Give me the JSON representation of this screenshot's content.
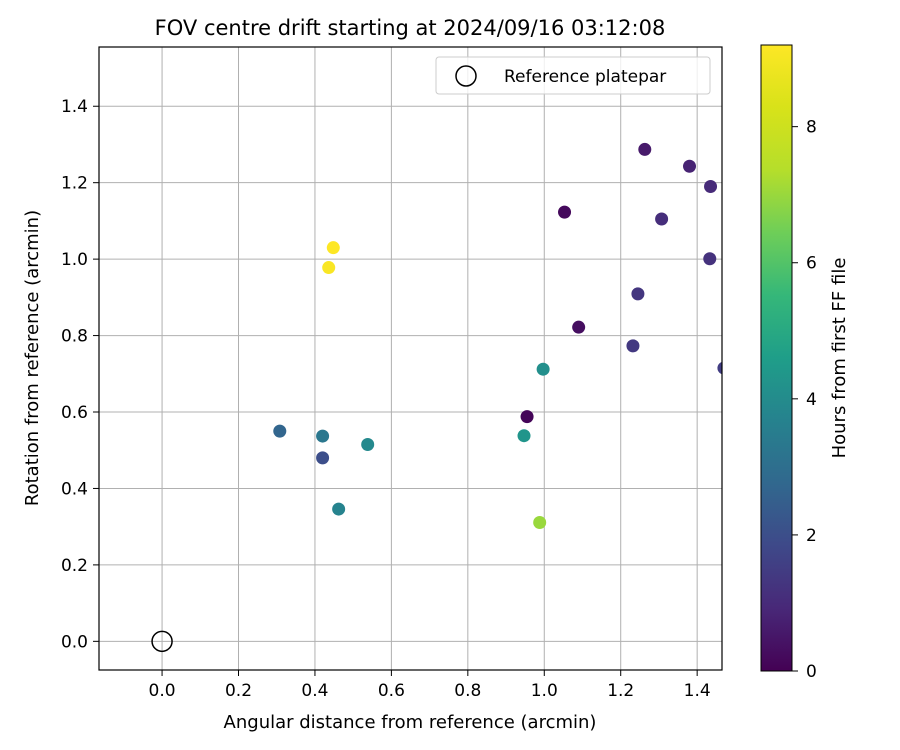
{
  "chart_data": {
    "type": "scatter",
    "title": "FOV centre drift starting at 2024/09/16 03:12:08",
    "xlabel": "Angular distance from reference (arcmin)",
    "ylabel": "Rotation from reference (arcmin)",
    "xlim": [
      -0.165,
      1.465
    ],
    "ylim": [
      -0.075,
      1.555
    ],
    "xticks": [
      0.0,
      0.2,
      0.4,
      0.6,
      0.8,
      1.0,
      1.2,
      1.4
    ],
    "yticks": [
      0.0,
      0.2,
      0.4,
      0.6,
      0.8,
      1.0,
      1.2,
      1.4
    ],
    "grid": true,
    "legend": {
      "position": "top-right",
      "entries": [
        "Reference platepar"
      ]
    },
    "reference": {
      "x": 0.0,
      "y": 0.0
    },
    "colorbar": {
      "label": "Hours from first FF file",
      "range": [
        0,
        9.2
      ],
      "ticks": [
        0,
        2,
        4,
        6,
        8
      ],
      "colormap": "viridis"
    },
    "points": [
      {
        "x": 0.955,
        "y": 0.588,
        "hours": 0.1
      },
      {
        "x": 1.053,
        "y": 1.123,
        "hours": 0.2
      },
      {
        "x": 1.09,
        "y": 0.822,
        "hours": 0.3
      },
      {
        "x": 1.263,
        "y": 1.287,
        "hours": 0.6
      },
      {
        "x": 1.38,
        "y": 1.243,
        "hours": 0.8
      },
      {
        "x": 1.435,
        "y": 1.19,
        "hours": 1.0
      },
      {
        "x": 1.307,
        "y": 1.105,
        "hours": 1.1
      },
      {
        "x": 1.433,
        "y": 1.001,
        "hours": 1.2
      },
      {
        "x": 1.245,
        "y": 0.909,
        "hours": 1.3
      },
      {
        "x": 1.232,
        "y": 0.773,
        "hours": 1.4
      },
      {
        "x": 1.47,
        "y": 0.715,
        "hours": 1.5
      },
      {
        "x": 0.42,
        "y": 0.48,
        "hours": 2.0
      },
      {
        "x": 0.308,
        "y": 0.55,
        "hours": 2.7
      },
      {
        "x": 0.42,
        "y": 0.537,
        "hours": 3.3
      },
      {
        "x": 0.462,
        "y": 0.346,
        "hours": 3.7
      },
      {
        "x": 0.538,
        "y": 0.515,
        "hours": 3.9
      },
      {
        "x": 0.997,
        "y": 0.712,
        "hours": 4.1
      },
      {
        "x": 0.947,
        "y": 0.538,
        "hours": 4.3
      },
      {
        "x": 0.988,
        "y": 0.311,
        "hours": 7.0
      },
      {
        "x": 0.436,
        "y": 0.978,
        "hours": 9.1
      },
      {
        "x": 0.448,
        "y": 1.03,
        "hours": 9.2
      }
    ]
  }
}
